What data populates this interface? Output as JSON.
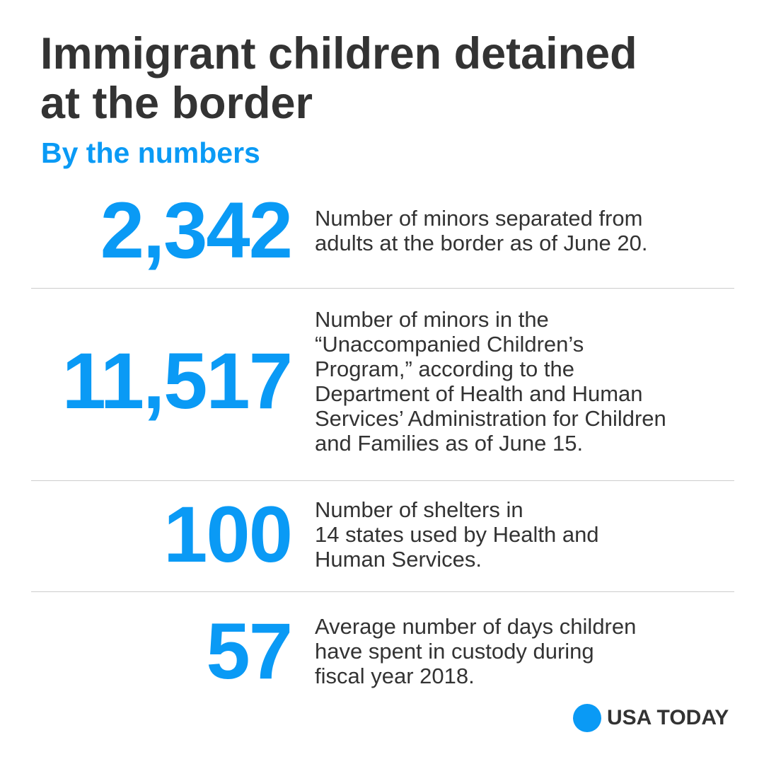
{
  "header": {
    "title_lines": [
      "Immigrant children detained",
      "at the border"
    ],
    "subtitle": "By the numbers"
  },
  "items": [
    {
      "number": "2,342",
      "lines": [
        "Number of minors separated from",
        "adults at the border as of June 20."
      ]
    },
    {
      "number": "11,517",
      "lines": [
        "Number of minors in the",
        "“Unaccompanied Children’s",
        "Program,” according to the",
        "Department of Health and Human",
        "Services’ Administration for Children",
        "and Families as of June 15."
      ]
    },
    {
      "number": "100",
      "lines": [
        "Number of shelters in",
        "14 states used by Health and",
        "Human Services."
      ]
    },
    {
      "number": "57",
      "lines": [
        "Average number of days children",
        "have spent in custody during",
        "fiscal year 2018."
      ]
    }
  ],
  "footer": {
    "brand": "USA TODAY"
  }
}
